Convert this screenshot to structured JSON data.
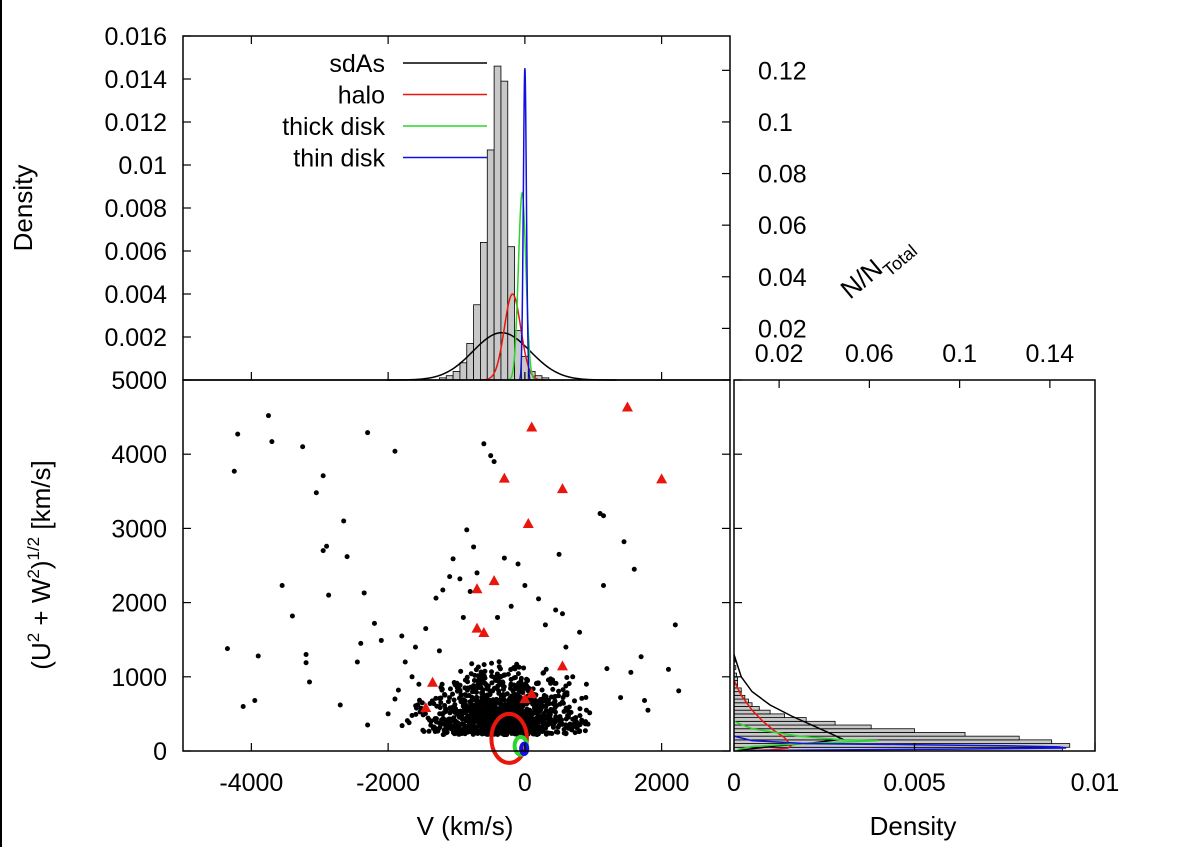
{
  "colors": {
    "sdAs": "#000000",
    "halo": "#e8160c",
    "thick_disk": "#2bd52b",
    "thin_disk": "#1010e0",
    "bar_fill": "#c8c8c8",
    "frame": "#000000"
  },
  "chart_data": [
    {
      "id": "top_histogram",
      "type": "bar",
      "title": "",
      "xlabel": "",
      "ylabel": "Density",
      "xlim": [
        -5000,
        3000
      ],
      "ylim": [
        0,
        0.016
      ],
      "y_ticks": [
        "0.016",
        "0.014",
        "0.012",
        "0.01",
        "0.008",
        "0.006",
        "0.004",
        "0.002"
      ],
      "y_tick_values": [
        0.016,
        0.014,
        0.012,
        0.01,
        0.008,
        0.006,
        0.004,
        0.002
      ],
      "right_ticks": [
        "0.12",
        "0.1",
        "0.08",
        "0.06",
        "0.04",
        "0.02"
      ],
      "right_tick_values": [
        0.12,
        0.1,
        0.08,
        0.06,
        0.04,
        0.02
      ],
      "right_ylim": [
        0,
        0.1333
      ],
      "bins": {
        "x": [
          -1200,
          -1100,
          -1000,
          -900,
          -800,
          -700,
          -600,
          -500,
          -400,
          -300,
          -200,
          -100,
          0,
          100,
          200,
          300
        ],
        "values": [
          0.0001,
          0.0002,
          0.0004,
          0.0008,
          0.0017,
          0.0035,
          0.0064,
          0.0107,
          0.0146,
          0.0139,
          0.0062,
          0.0023,
          0.0011,
          0.0004,
          0.0002,
          0.0001
        ]
      },
      "legend": [
        {
          "label": "sdAs",
          "key": "sdAs"
        },
        {
          "label": "halo",
          "key": "halo"
        },
        {
          "label": "thick disk",
          "key": "thick_disk"
        },
        {
          "label": "thin disk",
          "key": "thin_disk"
        }
      ],
      "curves": [
        {
          "name": "sdAs",
          "color_key": "sdAs",
          "center": -340,
          "sigma": 420,
          "peak": 0.0022
        },
        {
          "name": "halo",
          "color_key": "halo",
          "center": -180,
          "sigma": 120,
          "peak": 0.004
        },
        {
          "name": "thick disk",
          "color_key": "thick_disk",
          "center": -40,
          "sigma": 55,
          "peak": 0.0087
        },
        {
          "name": "thin disk",
          "color_key": "thin_disk",
          "center": 0,
          "sigma": 22,
          "peak": 0.0145
        }
      ]
    },
    {
      "id": "scatter",
      "type": "scatter",
      "xlabel": "V (km/s)",
      "ylabel": "(U² + W²)¹ᐟ² [km/s]",
      "ylabel_parts": {
        "open": "(U",
        "sup1": "2",
        "mid": " + W",
        "sup2": "2",
        "close": ")",
        "sup3": "1/2",
        "unit": " [km/s]"
      },
      "xlim": [
        -5000,
        3000
      ],
      "ylim": [
        0,
        5000
      ],
      "x_ticks": [
        "-4000",
        "-2000",
        "0",
        "2000"
      ],
      "x_tick_values": [
        -4000,
        -2000,
        0,
        2000
      ],
      "y_ticks": [
        "5000",
        "4000",
        "3000",
        "2000",
        "1000",
        "0"
      ],
      "y_tick_values": [
        5000,
        4000,
        3000,
        2000,
        1000,
        0
      ],
      "sdA_points": [
        [
          -4350,
          1380
        ],
        [
          -4200,
          4270
        ],
        [
          -4250,
          3770
        ],
        [
          -4120,
          600
        ],
        [
          -3900,
          1280
        ],
        [
          -3950,
          680
        ],
        [
          -3750,
          4520
        ],
        [
          -3700,
          4170
        ],
        [
          -3550,
          2230
        ],
        [
          -3400,
          1820
        ],
        [
          -3250,
          4100
        ],
        [
          -3200,
          1300
        ],
        [
          -3200,
          1190
        ],
        [
          -3150,
          930
        ],
        [
          -3050,
          3480
        ],
        [
          -2950,
          3710
        ],
        [
          -2950,
          2700
        ],
        [
          -2900,
          2760
        ],
        [
          -2870,
          2100
        ],
        [
          -2700,
          620
        ],
        [
          -2650,
          3100
        ],
        [
          -2600,
          2620
        ],
        [
          -2450,
          1200
        ],
        [
          -2400,
          1450
        ],
        [
          -2350,
          2130
        ],
        [
          -2300,
          4290
        ],
        [
          -2200,
          1720
        ],
        [
          -2100,
          1490
        ],
        [
          -1900,
          4040
        ],
        [
          -1850,
          820
        ],
        [
          -1800,
          1550
        ],
        [
          -1750,
          1200
        ],
        [
          -1650,
          1000
        ],
        [
          -1600,
          1400
        ],
        [
          -1550,
          900
        ],
        [
          -1500,
          650
        ],
        [
          -1450,
          1650
        ],
        [
          -1300,
          2060
        ],
        [
          -1250,
          1350
        ],
        [
          -1200,
          2170
        ],
        [
          -1100,
          2350
        ],
        [
          -1050,
          2590
        ],
        [
          -950,
          2320
        ],
        [
          -900,
          1800
        ],
        [
          -850,
          2980
        ],
        [
          -800,
          2150
        ],
        [
          -750,
          2750
        ],
        [
          -700,
          2400
        ],
        [
          -600,
          4140
        ],
        [
          -500,
          3980
        ],
        [
          -450,
          3900
        ],
        [
          -400,
          1800
        ],
        [
          -300,
          2600
        ],
        [
          -200,
          1950
        ],
        [
          -100,
          2520
        ],
        [
          0,
          2230
        ],
        [
          200,
          2050
        ],
        [
          300,
          1700
        ],
        [
          450,
          1900
        ],
        [
          500,
          2650
        ],
        [
          550,
          1850
        ],
        [
          600,
          1400
        ],
        [
          700,
          1000
        ],
        [
          800,
          1600
        ],
        [
          900,
          900
        ],
        [
          1100,
          3200
        ],
        [
          1150,
          3170
        ],
        [
          1150,
          2230
        ],
        [
          1200,
          1110
        ],
        [
          1400,
          720
        ],
        [
          1450,
          2820
        ],
        [
          1550,
          1060
        ],
        [
          1600,
          2450
        ],
        [
          1700,
          1270
        ],
        [
          1750,
          680
        ],
        [
          2200,
          1700
        ],
        [
          2250,
          810
        ],
        [
          1800,
          550
        ],
        [
          2100,
          1100
        ],
        [
          900,
          550
        ],
        [
          -2300,
          350
        ],
        [
          -2000,
          500
        ],
        [
          -1900,
          700
        ]
      ],
      "core": {
        "cx": -350,
        "cy": 220,
        "rx": 1500,
        "ry": 700,
        "n": 1200
      },
      "halo_points": [
        [
          1500,
          4630
        ],
        [
          100,
          4360
        ],
        [
          2000,
          3660
        ],
        [
          -300,
          3670
        ],
        [
          550,
          3530
        ],
        [
          50,
          3060
        ],
        [
          -450,
          2290
        ],
        [
          -700,
          2180
        ],
        [
          -700,
          1650
        ],
        [
          -600,
          1590
        ],
        [
          550,
          1140
        ],
        [
          100,
          770
        ],
        [
          0,
          700
        ],
        [
          -1350,
          920
        ],
        [
          -1450,
          580
        ]
      ],
      "ellipses": [
        {
          "name": "halo",
          "color_key": "halo",
          "cx": -230,
          "cy": 170,
          "rx": 260,
          "ry": 330
        },
        {
          "name": "thick disk",
          "color_key": "thick_disk",
          "cx": -60,
          "cy": 70,
          "rx": 90,
          "ry": 120
        },
        {
          "name": "thin disk",
          "color_key": "thin_disk",
          "cx": -10,
          "cy": 30,
          "rx": 45,
          "ry": 70
        }
      ]
    },
    {
      "id": "right_histogram",
      "type": "bar",
      "orientation": "horizontal",
      "xlabel": "Density",
      "xlim": [
        0,
        0.01
      ],
      "ylim": [
        0,
        5000
      ],
      "x_ticks": [
        "0",
        "0.005",
        "0.01"
      ],
      "x_tick_values": [
        0,
        0.005,
        0.01
      ],
      "top_axis_label": "N/N",
      "top_axis_label_sub": "Total",
      "top_ticks": [
        "0.02",
        "0.06",
        "0.1",
        "0.14"
      ],
      "top_tick_values": [
        0.02,
        0.06,
        0.1,
        0.14
      ],
      "top_xlim": [
        0,
        0.16
      ],
      "bins": {
        "y": [
          0,
          50,
          100,
          150,
          200,
          250,
          300,
          350,
          400,
          450,
          500,
          550,
          600,
          650,
          700,
          750,
          800,
          850,
          900,
          950,
          1000,
          1100,
          1200
        ],
        "values": [
          0.0091,
          0.0093,
          0.0088,
          0.0079,
          0.0064,
          0.005,
          0.0038,
          0.0028,
          0.002,
          0.0014,
          0.001,
          0.0007,
          0.0005,
          0.0004,
          0.0003,
          0.0002,
          0.0002,
          0.0001,
          0.0001,
          0.0001,
          7e-05,
          5e-05,
          3e-05
        ]
      },
      "curves": [
        {
          "name": "sdAs",
          "color_key": "sdAs",
          "points": [
            [
              0,
              1300
            ],
            [
              0.0002,
              1000
            ],
            [
              0.0005,
              800
            ],
            [
              0.001,
              620
            ],
            [
              0.0016,
              470
            ],
            [
              0.0022,
              340
            ],
            [
              0.0027,
              230
            ],
            [
              0.003,
              160
            ],
            [
              0.0022,
              110
            ],
            [
              0.0012,
              70
            ],
            [
              0.0005,
              30
            ],
            [
              0.0001,
              5
            ]
          ]
        },
        {
          "name": "halo",
          "color_key": "halo",
          "points": [
            [
              0,
              950
            ],
            [
              0.0002,
              750
            ],
            [
              0.0005,
              550
            ],
            [
              0.0008,
              400
            ],
            [
              0.0011,
              280
            ],
            [
              0.0014,
              180
            ],
            [
              0.0015,
              120
            ],
            [
              0.0016,
              80
            ],
            [
              0.0015,
              40
            ],
            [
              0.001,
              15
            ],
            [
              0.0003,
              3
            ]
          ]
        },
        {
          "name": "thick disk",
          "color_key": "thick_disk",
          "points": [
            [
              0,
              400
            ],
            [
              0.0005,
              300
            ],
            [
              0.0018,
              200
            ],
            [
              0.003,
              150
            ],
            [
              0.004,
              140
            ],
            [
              0.003,
              120
            ],
            [
              0.0015,
              90
            ],
            [
              0.0005,
              60
            ],
            [
              0.0001,
              20
            ]
          ]
        },
        {
          "name": "thin disk",
          "color_key": "thin_disk",
          "points": [
            [
              0,
              200
            ],
            [
              0.0005,
              140
            ],
            [
              0.002,
              100
            ],
            [
              0.005,
              85
            ],
            [
              0.0075,
              70
            ],
            [
              0.009,
              55
            ],
            [
              0.0092,
              40
            ],
            [
              0.006,
              25
            ],
            [
              0.002,
              12
            ],
            [
              0.0003,
              3
            ]
          ]
        }
      ]
    }
  ]
}
